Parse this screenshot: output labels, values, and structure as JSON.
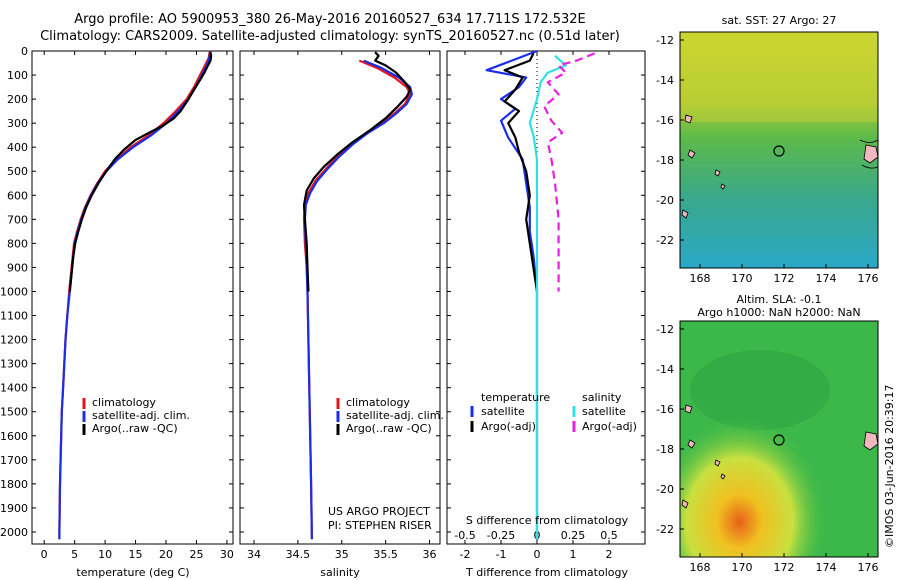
{
  "header": {
    "line1": "Argo profile: AO 5900953_380 26-May-2016 20160527_634 17.711S 172.532E",
    "line2": "Climatology: CARS2009. Satellite-adjusted climatology: synTS_20160527.nc (0.51d later)"
  },
  "colors": {
    "climatology": "#e8141c",
    "satellite": "#1a2ee6",
    "argo": "#000000",
    "sal_sat": "#2fe0e8",
    "sal_argo": "#e81ee0"
  },
  "chart_data": [
    {
      "type": "line",
      "xlabel": "temperature (deg C)",
      "xticks": [
        "0",
        "5",
        "10",
        "15",
        "20",
        "25",
        "30"
      ],
      "xlim": [
        -2,
        31
      ],
      "ylim": [
        0,
        2050
      ],
      "yticks": [
        "0",
        "100",
        "200",
        "300",
        "400",
        "500",
        "600",
        "700",
        "800",
        "900",
        "1000",
        "1100",
        "1200",
        "1300",
        "1400",
        "1500",
        "1600",
        "1700",
        "1800",
        "1900",
        "2000"
      ],
      "legend": [
        "climatology",
        "satellite-adj. clim.",
        "Argo(..raw -QC)"
      ],
      "series": [
        {
          "name": "climatology",
          "points": [
            [
              27.2,
              0
            ],
            [
              27.0,
              30
            ],
            [
              26.4,
              60
            ],
            [
              25.6,
              100
            ],
            [
              24.6,
              150
            ],
            [
              23.4,
              200
            ],
            [
              21.6,
              250
            ],
            [
              19.6,
              300
            ],
            [
              17.2,
              350
            ],
            [
              14.2,
              400
            ],
            [
              11.9,
              450
            ],
            [
              10.0,
              500
            ],
            [
              8.7,
              550
            ],
            [
              7.6,
              600
            ],
            [
              6.7,
              650
            ],
            [
              6.0,
              700
            ],
            [
              5.4,
              750
            ],
            [
              4.9,
              800
            ],
            [
              4.5,
              900
            ],
            [
              4.1,
              1000
            ],
            [
              3.8,
              1100
            ],
            [
              3.5,
              1200
            ],
            [
              3.3,
              1300
            ],
            [
              3.1,
              1400
            ],
            [
              2.9,
              1500
            ],
            [
              2.8,
              1600
            ],
            [
              2.7,
              1700
            ],
            [
              2.6,
              1800
            ],
            [
              2.55,
              1900
            ],
            [
              2.5,
              2000
            ],
            [
              2.5,
              2030
            ]
          ]
        },
        {
          "name": "satellite-adj. clim.",
          "points": [
            [
              27.3,
              0
            ],
            [
              27.1,
              30
            ],
            [
              26.7,
              60
            ],
            [
              25.9,
              100
            ],
            [
              24.9,
              150
            ],
            [
              23.7,
              200
            ],
            [
              22.0,
              250
            ],
            [
              20.1,
              300
            ],
            [
              17.6,
              350
            ],
            [
              14.6,
              400
            ],
            [
              12.1,
              450
            ],
            [
              10.2,
              500
            ],
            [
              8.8,
              550
            ],
            [
              7.7,
              600
            ],
            [
              6.8,
              650
            ],
            [
              6.1,
              700
            ],
            [
              5.5,
              750
            ],
            [
              5.0,
              800
            ],
            [
              4.6,
              900
            ],
            [
              4.2,
              1000
            ],
            [
              3.8,
              1100
            ],
            [
              3.5,
              1200
            ],
            [
              3.3,
              1300
            ],
            [
              3.1,
              1400
            ],
            [
              2.9,
              1500
            ],
            [
              2.8,
              1600
            ],
            [
              2.7,
              1700
            ],
            [
              2.6,
              1800
            ],
            [
              2.55,
              1900
            ],
            [
              2.5,
              2000
            ],
            [
              2.5,
              2030
            ]
          ]
        },
        {
          "name": "Argo(..raw -QC)",
          "points": [
            [
              27.3,
              5
            ],
            [
              27.4,
              20
            ],
            [
              27.3,
              40
            ],
            [
              26.9,
              60
            ],
            [
              26.3,
              90
            ],
            [
              25.6,
              120
            ],
            [
              24.6,
              160
            ],
            [
              23.7,
              200
            ],
            [
              22.4,
              250
            ],
            [
              21.3,
              280
            ],
            [
              19.5,
              310
            ],
            [
              17.2,
              340
            ],
            [
              15.0,
              370
            ],
            [
              13.1,
              410
            ],
            [
              11.6,
              450
            ],
            [
              10.2,
              500
            ],
            [
              8.9,
              550
            ],
            [
              7.8,
              600
            ],
            [
              6.9,
              650
            ],
            [
              6.2,
              700
            ],
            [
              5.6,
              750
            ],
            [
              5.1,
              800
            ],
            [
              4.7,
              870
            ],
            [
              4.4,
              950
            ],
            [
              4.2,
              1000
            ]
          ]
        }
      ]
    },
    {
      "type": "line",
      "xlabel": "salinity",
      "xticks": [
        "34",
        "34.5",
        "35",
        "35.5",
        "36"
      ],
      "xlim": [
        33.84,
        36.12
      ],
      "ylim": [
        0,
        2050
      ],
      "legend": [
        "climatology",
        "satellite-adj. clim.",
        "Argo(..raw -QC)"
      ],
      "credits": [
        "US ARGO PROJECT",
        "PI: STEPHEN RISER"
      ],
      "series": [
        {
          "name": "climatology",
          "points": [
            [
              35.2,
              40
            ],
            [
              35.4,
              70
            ],
            [
              35.6,
              110
            ],
            [
              35.74,
              150
            ],
            [
              35.78,
              180
            ],
            [
              35.72,
              220
            ],
            [
              35.6,
              260
            ],
            [
              35.45,
              300
            ],
            [
              35.28,
              340
            ],
            [
              35.1,
              390
            ],
            [
              34.95,
              440
            ],
            [
              34.82,
              490
            ],
            [
              34.7,
              540
            ],
            [
              34.62,
              590
            ],
            [
              34.58,
              640
            ],
            [
              34.57,
              700
            ],
            [
              34.58,
              800
            ],
            [
              34.6,
              900
            ],
            [
              34.61,
              1000
            ],
            [
              34.62,
              1200
            ],
            [
              34.63,
              1400
            ],
            [
              34.64,
              1600
            ],
            [
              34.65,
              1800
            ],
            [
              34.66,
              2030
            ]
          ]
        },
        {
          "name": "satellite-adj. clim.",
          "points": [
            [
              35.25,
              40
            ],
            [
              35.45,
              70
            ],
            [
              35.65,
              110
            ],
            [
              35.78,
              150
            ],
            [
              35.8,
              180
            ],
            [
              35.74,
              220
            ],
            [
              35.62,
              260
            ],
            [
              35.48,
              300
            ],
            [
              35.3,
              340
            ],
            [
              35.12,
              390
            ],
            [
              34.97,
              440
            ],
            [
              34.84,
              490
            ],
            [
              34.72,
              540
            ],
            [
              34.64,
              590
            ],
            [
              34.59,
              640
            ],
            [
              34.58,
              700
            ],
            [
              34.59,
              800
            ],
            [
              34.6,
              900
            ],
            [
              34.61,
              1000
            ],
            [
              34.62,
              1200
            ],
            [
              34.63,
              1400
            ],
            [
              34.64,
              1600
            ],
            [
              34.65,
              1800
            ],
            [
              34.66,
              2030
            ]
          ]
        },
        {
          "name": "Argo(..raw -QC)",
          "points": [
            [
              35.38,
              5
            ],
            [
              35.42,
              20
            ],
            [
              35.38,
              40
            ],
            [
              35.5,
              60
            ],
            [
              35.62,
              90
            ],
            [
              35.72,
              130
            ],
            [
              35.78,
              160
            ],
            [
              35.74,
              190
            ],
            [
              35.64,
              230
            ],
            [
              35.5,
              280
            ],
            [
              35.32,
              330
            ],
            [
              35.12,
              380
            ],
            [
              34.95,
              430
            ],
            [
              34.8,
              480
            ],
            [
              34.68,
              530
            ],
            [
              34.6,
              580
            ],
            [
              34.57,
              640
            ],
            [
              34.58,
              700
            ],
            [
              34.6,
              800
            ],
            [
              34.61,
              900
            ],
            [
              34.62,
              1000
            ]
          ]
        }
      ]
    },
    {
      "type": "line",
      "xlabel": "T difference from climatology",
      "xlabel_top": "S difference from climatology",
      "xticks": [
        "-2",
        "-1",
        "0",
        "1",
        "2"
      ],
      "xticks_top": [
        "-0.5",
        "-0.25",
        "0",
        "0.25",
        "0.5"
      ],
      "xlim": [
        -2.5,
        3.0
      ],
      "ylim": [
        0,
        2050
      ],
      "legend_left": {
        "title": "temperature",
        "items": [
          "satellite",
          "Argo(-adj)"
        ]
      },
      "legend_right": {
        "title": "salinity",
        "items": [
          "satellite",
          "Argo(-adj)"
        ]
      },
      "series": [
        {
          "name": "temperature satellite",
          "points": [
            [
              0,
              0
            ],
            [
              -0.7,
              40
            ],
            [
              -1.4,
              80
            ],
            [
              -0.3,
              110
            ],
            [
              -0.5,
              150
            ],
            [
              -1.0,
              200
            ],
            [
              -0.6,
              240
            ],
            [
              -1.0,
              290
            ],
            [
              -0.8,
              360
            ],
            [
              -0.4,
              450
            ],
            [
              -0.3,
              550
            ],
            [
              -0.2,
              650
            ],
            [
              -0.2,
              750
            ],
            [
              -0.1,
              850
            ],
            [
              0,
              1000
            ],
            [
              0,
              1200
            ],
            [
              0,
              2030
            ]
          ]
        },
        {
          "name": "temperature Argo(-adj)",
          "points": [
            [
              -0.1,
              10
            ],
            [
              -0.2,
              40
            ],
            [
              -0.9,
              80
            ],
            [
              -0.4,
              110
            ],
            [
              -0.6,
              160
            ],
            [
              -0.9,
              210
            ],
            [
              -0.5,
              250
            ],
            [
              -0.8,
              300
            ],
            [
              -0.6,
              360
            ],
            [
              -0.5,
              420
            ],
            [
              -0.3,
              500
            ],
            [
              -0.2,
              600
            ],
            [
              -0.3,
              700
            ],
            [
              -0.2,
              800
            ],
            [
              -0.1,
              900
            ],
            [
              0,
              1000
            ]
          ]
        },
        {
          "name": "salinity satellite",
          "points": [
            [
              0.5,
              20
            ],
            [
              0.8,
              60
            ],
            [
              0.3,
              90
            ],
            [
              0.1,
              130
            ],
            [
              0.0,
              200
            ],
            [
              -0.1,
              250
            ],
            [
              -0.2,
              300
            ],
            [
              -0.1,
              350
            ],
            [
              0,
              450
            ],
            [
              0,
              600
            ],
            [
              0,
              800
            ],
            [
              0,
              1000
            ],
            [
              0,
              1200
            ],
            [
              0,
              1600
            ],
            [
              0,
              2030
            ]
          ]
        },
        {
          "name": "salinity Argo(-adj)",
          "points": [
            [
              1.6,
              10
            ],
            [
              1.1,
              40
            ],
            [
              0.6,
              60
            ],
            [
              0.8,
              90
            ],
            [
              0.3,
              130
            ],
            [
              0.6,
              180
            ],
            [
              0.2,
              230
            ],
            [
              0.4,
              290
            ],
            [
              0.7,
              340
            ],
            [
              0.3,
              380
            ],
            [
              0.4,
              450
            ],
            [
              0.5,
              550
            ],
            [
              0.6,
              700
            ],
            [
              0.6,
              850
            ],
            [
              0.6,
              1000
            ]
          ]
        }
      ]
    }
  ],
  "maps": {
    "top": {
      "title": "sat. SST: 27 Argo: 27",
      "yticks": [
        "-12",
        "-14",
        "-16",
        "-18",
        "-20",
        "-22"
      ],
      "xticks": [
        "168",
        "170",
        "172",
        "174",
        "176"
      ]
    },
    "bottom": {
      "title1": "Altim. SLA: -0.1",
      "title2": "Argo h1000: NaN h2000: NaN",
      "yticks": [
        "-12",
        "-14",
        "-16",
        "-18",
        "-20",
        "-22"
      ],
      "xticks": [
        "168",
        "170",
        "172",
        "174",
        "176"
      ],
      "stamp": "©IMOS 03-Jun-2016 20:39:17"
    }
  }
}
